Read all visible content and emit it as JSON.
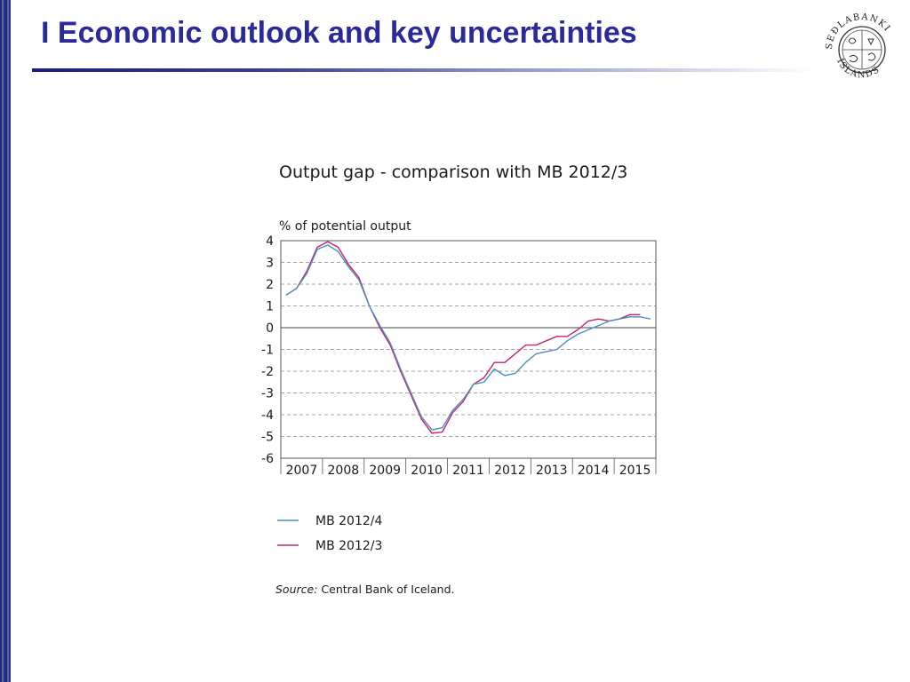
{
  "slide": {
    "title": "I Economic outlook and key uncertainties",
    "logo": {
      "top_text": "SEÐLABANKI",
      "bottom_text": "ÍSLANDS"
    }
  },
  "source": {
    "label": "Source:",
    "text": "Central Bank of Iceland."
  },
  "colors": {
    "title": "#2a2a9a",
    "mb_2012_4": "#4a8fc4",
    "mb_2012_3": "#c4226e"
  },
  "chart_data": {
    "type": "line",
    "title": "Output gap - comparison with MB 2012/3",
    "ylabel": "% of potential output",
    "xlabel": "",
    "ylim": [
      -6,
      4
    ],
    "yticks": [
      4,
      3,
      2,
      1,
      0,
      -1,
      -2,
      -3,
      -4,
      -5,
      -6
    ],
    "xticks": [
      "2007",
      "2008",
      "2009",
      "2010",
      "2011",
      "2012",
      "2013",
      "2014",
      "2015"
    ],
    "x_unit": "quarter",
    "grid": "dashed horizontal",
    "legend": "bottom-left",
    "series": [
      {
        "name": "MB 2012/4",
        "color": "#4a8fc4",
        "x": [
          "2007Q1",
          "2007Q2",
          "2007Q3",
          "2007Q4",
          "2008Q1",
          "2008Q2",
          "2008Q3",
          "2008Q4",
          "2009Q1",
          "2009Q2",
          "2009Q3",
          "2009Q4",
          "2010Q1",
          "2010Q2",
          "2010Q3",
          "2010Q4",
          "2011Q1",
          "2011Q2",
          "2011Q3",
          "2011Q4",
          "2012Q1",
          "2012Q2",
          "2012Q3",
          "2012Q4",
          "2013Q1",
          "2013Q2",
          "2013Q3",
          "2013Q4",
          "2014Q1",
          "2014Q2",
          "2014Q3",
          "2014Q4",
          "2015Q1",
          "2015Q2",
          "2015Q3",
          "2015Q4"
        ],
        "values": [
          1.5,
          1.8,
          2.5,
          3.6,
          3.8,
          3.5,
          2.8,
          2.2,
          1.0,
          0.1,
          -0.7,
          -1.9,
          -3.0,
          -4.1,
          -4.7,
          -4.6,
          -3.8,
          -3.3,
          -2.6,
          -2.5,
          -1.9,
          -2.2,
          -2.1,
          -1.6,
          -1.2,
          -1.1,
          -1.0,
          -0.6,
          -0.3,
          -0.1,
          0.1,
          0.3,
          0.4,
          0.5,
          0.5,
          0.4
        ]
      },
      {
        "name": "MB 2012/3",
        "color": "#c4226e",
        "x": [
          "2007Q1",
          "2007Q2",
          "2007Q3",
          "2007Q4",
          "2008Q1",
          "2008Q2",
          "2008Q3",
          "2008Q4",
          "2009Q1",
          "2009Q2",
          "2009Q3",
          "2009Q4",
          "2010Q1",
          "2010Q2",
          "2010Q3",
          "2010Q4",
          "2011Q1",
          "2011Q2",
          "2011Q3",
          "2011Q4",
          "2012Q1",
          "2012Q2",
          "2012Q3",
          "2012Q4",
          "2013Q1",
          "2013Q2",
          "2013Q3",
          "2013Q4",
          "2014Q1",
          "2014Q2",
          "2014Q3",
          "2014Q4",
          "2015Q1",
          "2015Q2",
          "2015Q3"
        ],
        "values": [
          1.5,
          1.8,
          2.6,
          3.7,
          3.95,
          3.7,
          2.9,
          2.3,
          1.0,
          0.0,
          -0.8,
          -2.0,
          -3.1,
          -4.2,
          -4.85,
          -4.8,
          -3.9,
          -3.4,
          -2.6,
          -2.3,
          -1.6,
          -1.6,
          -1.2,
          -0.8,
          -0.8,
          -0.6,
          -0.4,
          -0.4,
          -0.1,
          0.3,
          0.4,
          0.3,
          0.4,
          0.6,
          0.6
        ]
      }
    ]
  }
}
